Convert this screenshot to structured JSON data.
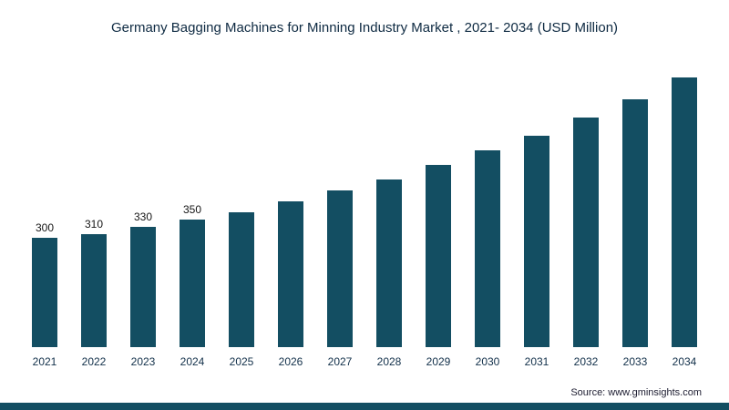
{
  "source": "Source: www.gminsights.com",
  "colors": {
    "bar": "#134e62",
    "title_text": "#0e2a42",
    "axis_text": "#12304a",
    "footer_bar": "#134e62"
  },
  "chart_data": {
    "type": "bar",
    "title": "Germany Bagging Machines for Minning Industry Market , 2021- 2034 (USD Million)",
    "categories": [
      "2021",
      "2022",
      "2023",
      "2024",
      "2025",
      "2026",
      "2027",
      "2028",
      "2029",
      "2030",
      "2031",
      "2032",
      "2033",
      "2034"
    ],
    "values": [
      300,
      310,
      330,
      350,
      370,
      400,
      430,
      460,
      500,
      540,
      580,
      630,
      680,
      740
    ],
    "data_labels": [
      "300",
      "310",
      "330",
      "350",
      "",
      "",
      "",
      "",
      "",
      "",
      "",
      "",
      "",
      ""
    ],
    "xlabel": "",
    "ylabel": "",
    "ylim": [
      0,
      800
    ],
    "grid": false,
    "legend": "none",
    "bar_color": "#134e62"
  }
}
